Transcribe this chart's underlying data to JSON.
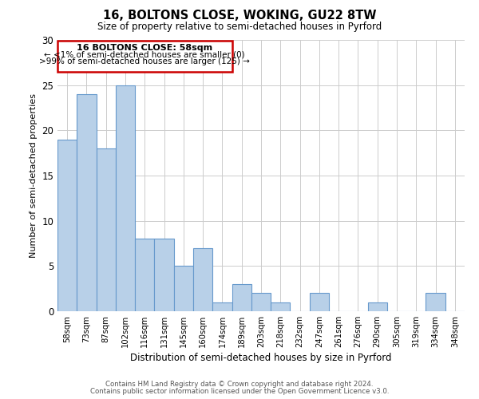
{
  "title": "16, BOLTONS CLOSE, WOKING, GU22 8TW",
  "subtitle": "Size of property relative to semi-detached houses in Pyrford",
  "xlabel": "Distribution of semi-detached houses by size in Pyrford",
  "ylabel": "Number of semi-detached properties",
  "categories": [
    "58sqm",
    "73sqm",
    "87sqm",
    "102sqm",
    "116sqm",
    "131sqm",
    "145sqm",
    "160sqm",
    "174sqm",
    "189sqm",
    "203sqm",
    "218sqm",
    "232sqm",
    "247sqm",
    "261sqm",
    "276sqm",
    "290sqm",
    "305sqm",
    "319sqm",
    "334sqm",
    "348sqm"
  ],
  "values": [
    19,
    24,
    18,
    25,
    8,
    8,
    5,
    7,
    1,
    3,
    2,
    1,
    0,
    2,
    0,
    0,
    1,
    0,
    0,
    2,
    0
  ],
  "bar_color": "#b8d0e8",
  "bar_edge_color": "#6699cc",
  "ylim": [
    0,
    30
  ],
  "yticks": [
    0,
    5,
    10,
    15,
    20,
    25,
    30
  ],
  "annotation_box_color": "#cc0000",
  "annotation_text_line1": "16 BOLTONS CLOSE: 58sqm",
  "annotation_text_line2": "← <1% of semi-detached houses are smaller (0)",
  "annotation_text_line3": ">99% of semi-detached houses are larger (125) →",
  "footer_line1": "Contains HM Land Registry data © Crown copyright and database right 2024.",
  "footer_line2": "Contains public sector information licensed under the Open Government Licence v3.0.",
  "background_color": "#ffffff",
  "grid_color": "#cccccc"
}
